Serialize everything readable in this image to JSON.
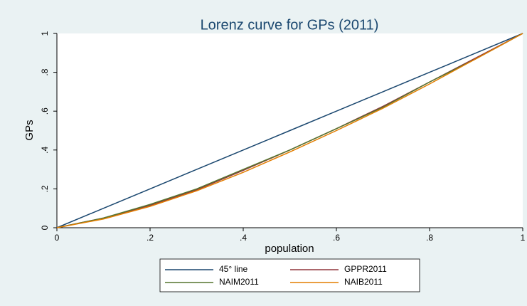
{
  "chart_data": {
    "type": "line",
    "title": "Lorenz curve for GPs (2011)",
    "x_label": "population",
    "y_label": "GPs",
    "x": [
      0,
      0.1,
      0.2,
      0.3,
      0.4,
      0.5,
      0.6,
      0.7,
      0.8,
      0.9,
      1
    ],
    "series": [
      {
        "name": "45° line",
        "color": "#1a476f",
        "values": [
          0,
          0.1,
          0.2,
          0.3,
          0.4,
          0.5,
          0.6,
          0.7,
          0.8,
          0.9,
          1
        ]
      },
      {
        "name": "GPPR2011",
        "color": "#90353b",
        "values": [
          0,
          0.05,
          0.115,
          0.195,
          0.295,
          0.4,
          0.51,
          0.625,
          0.75,
          0.875,
          1
        ]
      },
      {
        "name": "NAIM2011",
        "color": "#55752f",
        "values": [
          0,
          0.05,
          0.12,
          0.2,
          0.3,
          0.4,
          0.51,
          0.62,
          0.75,
          0.87,
          1
        ]
      },
      {
        "name": "NAIB2011",
        "color": "#e37e00",
        "values": [
          0,
          0.045,
          0.11,
          0.19,
          0.285,
          0.39,
          0.5,
          0.615,
          0.74,
          0.87,
          1
        ]
      }
    ],
    "xlim": [
      0,
      1
    ],
    "ylim": [
      0,
      1
    ],
    "xticks": [
      0,
      {
        "value": 0.2,
        "label": ".2"
      },
      {
        "value": 0.4,
        "label": ".4"
      },
      {
        "value": 0.6,
        "label": ".6"
      },
      {
        "value": 0.8,
        "label": ".8"
      },
      1
    ],
    "yticks": [
      0,
      {
        "value": 0.2,
        "label": ".2"
      },
      {
        "value": 0.4,
        "label": ".4"
      },
      {
        "value": 0.6,
        "label": ".6"
      },
      {
        "value": 0.8,
        "label": ".8"
      },
      1
    ],
    "grid": false,
    "legend": "bottom"
  }
}
